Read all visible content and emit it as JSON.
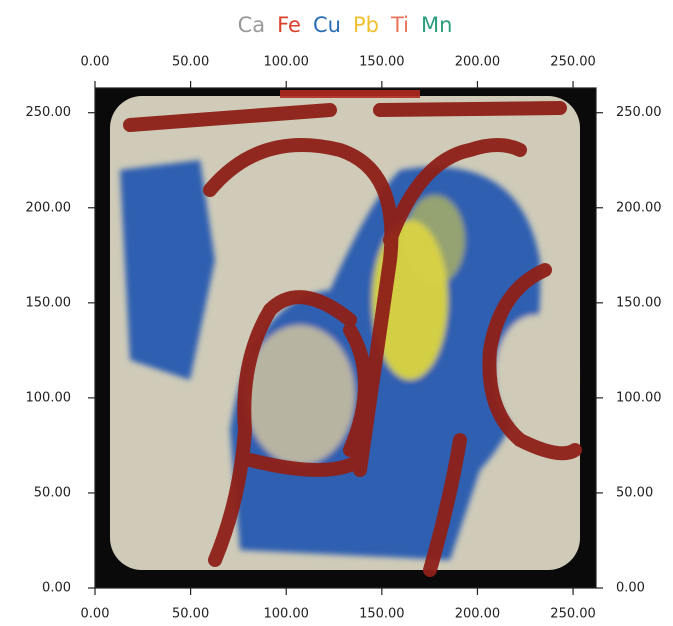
{
  "chart_data": {
    "type": "image",
    "legend": [
      {
        "name": "Ca",
        "color": "#9a9a9a"
      },
      {
        "name": "Fe",
        "color": "#d9412b"
      },
      {
        "name": "Cu",
        "color": "#2a6db5"
      },
      {
        "name": "Pb",
        "color": "#f0c030"
      },
      {
        "name": "Ti",
        "color": "#e8735a"
      },
      {
        "name": "Mn",
        "color": "#2a9d7a"
      }
    ],
    "xlim": [
      0,
      262
    ],
    "ylim": [
      0,
      263
    ],
    "xticks": [
      {
        "value": 0,
        "label": "0.00"
      },
      {
        "value": 50,
        "label": "50.00"
      },
      {
        "value": 100,
        "label": "100.00"
      },
      {
        "value": 150,
        "label": "150.00"
      },
      {
        "value": 200,
        "label": "200.00"
      },
      {
        "value": 250,
        "label": "250.00"
      }
    ],
    "yticks": [
      {
        "value": 0,
        "label": "0.00"
      },
      {
        "value": 50,
        "label": "50.00"
      },
      {
        "value": 100,
        "label": "100.00"
      },
      {
        "value": 150,
        "label": "150.00"
      },
      {
        "value": 200,
        "label": "200.00"
      },
      {
        "value": 250,
        "label": "250.00"
      }
    ]
  }
}
